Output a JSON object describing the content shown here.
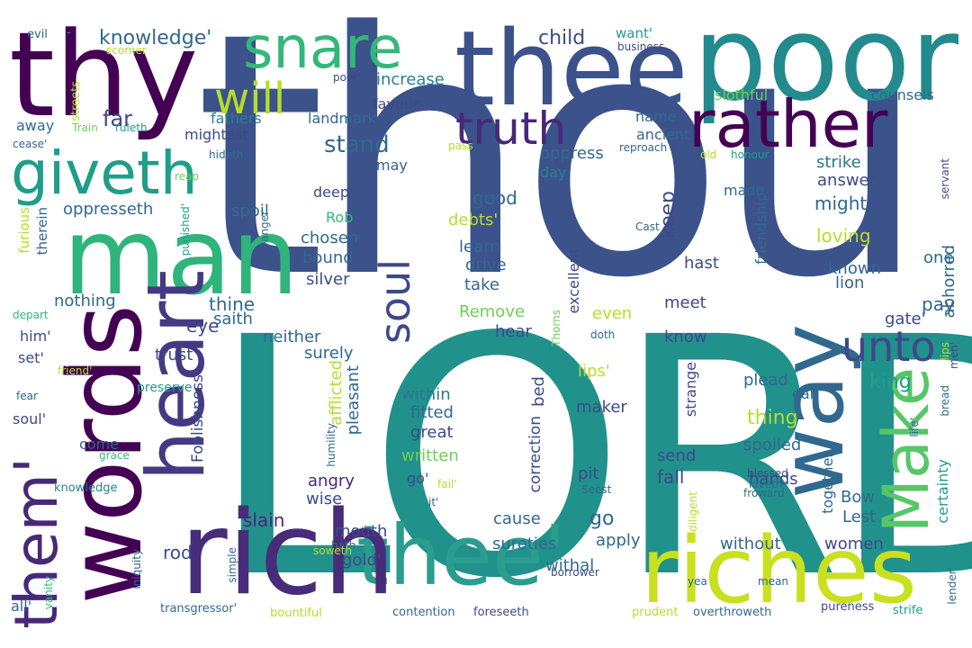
{
  "words": {
    "thou": "thou",
    "lord": "LORD",
    "poor": "poor",
    "thy": "thy",
    "thee1": "thee",
    "thee2": "thee'",
    "man": "man",
    "words": "words",
    "rich": "rich",
    "riches": "riches",
    "heart": "heart",
    "way": "way",
    "make": "Make",
    "rather": "rather",
    "snare": "snare",
    "giveth": "giveth",
    "them": "them'",
    "truth": "truth",
    "soul": "soul",
    "unto": "unto",
    "will": "will",
    "knowledge1": "knowledge'",
    "child": "child",
    "want": "want'",
    "increase": "increase",
    "favour": "favour",
    "slothful": "slothful",
    "counsels": "counsels",
    "fathers": "fathers",
    "landmark": "landmark",
    "name": "name",
    "away": "away",
    "far": "far",
    "mightest": "mightest",
    "ancient": "ancient",
    "stand": "stand",
    "oppress": "oppress",
    "may": "may",
    "day": "day",
    "strike": "strike",
    "deep": "deep",
    "made": "made",
    "answer": "answer",
    "oppresseth": "oppresseth",
    "spoil": "spoil",
    "good": "good",
    "debts": "debts'",
    "might": "might",
    "rob": "Rob",
    "chosen": "chosen",
    "bound": "bound",
    "keep": "keep",
    "loving": "loving",
    "friendship": "friendship",
    "abhorred": "abhorred",
    "silver": "silver",
    "nothing": "nothing",
    "learn": "learn",
    "drive": "drive",
    "take": "take",
    "hast": "hast",
    "one": "one",
    "known": "known",
    "lion": "lion",
    "pay": "pay",
    "thine": "thine",
    "remove": "Remove",
    "even": "even",
    "meet": "meet",
    "excellent": "excellent",
    "gate": "gate'",
    "eye": "eye",
    "saith": "saith",
    "him": "him'",
    "neither": "neither",
    "know": "know",
    "hear": "hear",
    "king": "king",
    "surely": "surely",
    "trust": "trust",
    "set": "set'",
    "lips1": "lips'",
    "plead": "plead",
    "within": "within",
    "thing": "thing",
    "ear": "ear",
    "soul2": "soul'",
    "fitted": "fitted",
    "maker": "maker",
    "great": "great",
    "spoiled": "spoiled",
    "come": "come",
    "written": "written",
    "hands": "hands",
    "angry": "angry",
    "go1": "go'",
    "wise": "wise",
    "send": "send",
    "fall": "fall",
    "bow": "Bow",
    "cause": "cause",
    "mouth": "mouth",
    "slain": "slain",
    "sureties": "sureties",
    "apply": "apply",
    "without": "without",
    "women": "women",
    "lest": "Lest",
    "rod": "rod",
    "gold": "gold'",
    "withal": "withal",
    "go2": "go",
    "pit": "pit",
    "all": "all'",
    "business": "business",
    "scorner": "scorner",
    "evil": "evil",
    "poor2": "poor'",
    "streets": "streets",
    "train": "Train",
    "ruleth": "ruleth",
    "cease": "cease'",
    "pass": "pass",
    "reproach": "reproach",
    "hideth": "hideth",
    "old": "old",
    "honour": "honour",
    "servant": "servant",
    "reap": "reap",
    "punished": "punished'",
    "anger": "anger",
    "furious": "furious",
    "therein": "therein",
    "depart": "depart",
    "friend": "friend'",
    "fear": "fear",
    "preserve": "preserve",
    "grace": "grace",
    "knowledge2": "knowledge",
    "foolishness": "Foolishness",
    "afflicted": "afflicted",
    "pleasant": "pleasant",
    "humility": "humility",
    "correction": "correction",
    "bed": "bed",
    "strange": "strange",
    "together": "together",
    "certainty": "certainty",
    "life": "life'",
    "thorns": "Thorns",
    "doth": "doth",
    "cast": "Cast",
    "men": "men'",
    "lips2": "lips",
    "bread": "bread",
    "blessed": "blessed",
    "loveth": "loveth",
    "froward": "froward",
    "seest": "Seest",
    "fail": "fail'",
    "it": "it'",
    "diligent": "diligent",
    "hath": "hath",
    "soweth": "soweth",
    "simple": "simple",
    "iniquity": "iniquity",
    "vanity": "vanity",
    "borrower": "borrower",
    "yea": "yea",
    "mean": "mean",
    "lender": "lender'",
    "transgressor": "transgressor'",
    "bountiful": "bountiful",
    "contention": "contention",
    "foreseeth": "foreseeth",
    "prudent": "prudent",
    "overthroweth": "overthroweth",
    "pureness": "pureness",
    "strife": "strife",
    "dash": "-"
  },
  "colors": {
    "dark_purple": "#440154",
    "indigo": "#482878",
    "slate_blue": "#3e4989",
    "steel_blue": "#31688e",
    "teal": "#26828e",
    "green_teal": "#1f9e89",
    "green": "#35b779",
    "light_green": "#6ece58",
    "lime": "#b5de2b",
    "yellow": "#c8e020"
  }
}
